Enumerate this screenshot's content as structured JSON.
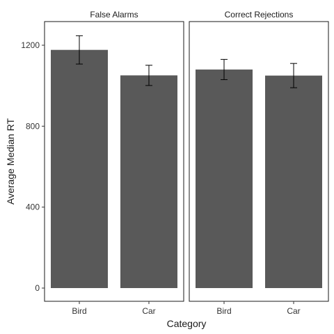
{
  "chart_data": {
    "type": "bar",
    "xlabel": "Category",
    "ylabel": "Average Median RT",
    "ylim": [
      0,
      1300
    ],
    "yticks": [
      0,
      400,
      800,
      1200
    ],
    "yticks_labels": [
      "0",
      "400",
      "800",
      "1200"
    ],
    "categories": [
      "Bird",
      "Car"
    ],
    "grid": false,
    "panels": [
      {
        "title": "False Alarms",
        "values": [
          1177,
          1051
        ],
        "error_low": [
          1107,
          1001
        ],
        "error_high": [
          1247,
          1101
        ]
      },
      {
        "title": "Correct Rejections",
        "values": [
          1080,
          1050
        ],
        "error_low": [
          1030,
          990
        ],
        "error_high": [
          1130,
          1110
        ]
      }
    ],
    "colors": {
      "bar": "#595959",
      "error_bar": "#000000",
      "panel_border": "#1a1a1a"
    }
  }
}
